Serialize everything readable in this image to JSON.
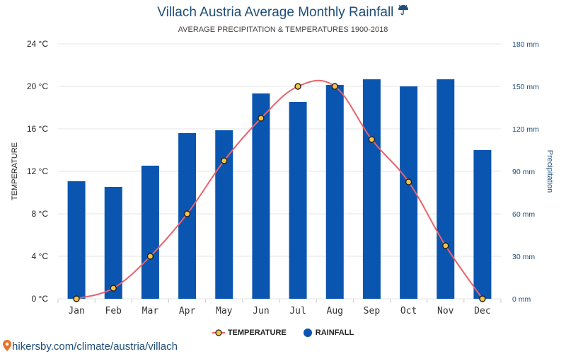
{
  "header": {
    "title": "Villach Austria Average Monthly Rainfall",
    "title_icon": "umbrella-rain-icon",
    "subtitle": "AVERAGE PRECIPITATION & TEMPERATURES 1900-2018"
  },
  "legend": {
    "temperature": "TEMPERATURE",
    "rainfall": "RAINFALL"
  },
  "source": {
    "text": "hikersby.com/climate/austria/villach",
    "icon": "map-pin-icon"
  },
  "colors": {
    "bar": "#0a55b0",
    "line": "#e8636b",
    "axis_text_left": "#222222",
    "axis_text_right": "#1f4e79",
    "grid": "#e6e6e6"
  },
  "chart_data": {
    "type": "bar",
    "categories": [
      "Jan",
      "Feb",
      "Mar",
      "Apr",
      "May",
      "Jun",
      "Jul",
      "Aug",
      "Sep",
      "Oct",
      "Nov",
      "Dec"
    ],
    "series": [
      {
        "name": "RAINFALL",
        "type": "bar",
        "axis": "right",
        "values": [
          83,
          79,
          94,
          117,
          119,
          145,
          139,
          151,
          155,
          150,
          155,
          105
        ]
      },
      {
        "name": "TEMPERATURE",
        "type": "line",
        "axis": "left",
        "values": [
          0,
          1,
          4,
          8,
          13,
          17,
          20,
          20,
          15,
          11,
          5,
          0
        ]
      }
    ],
    "ylabel_left": "TEMPERATURE",
    "ylabel_right": "Precipitation",
    "ylim_left": [
      0,
      24
    ],
    "ylim_right": [
      0,
      180
    ],
    "yticks_left": [
      "0 °C",
      "4 °C",
      "8 °C",
      "12 °C",
      "16 °C",
      "20 °C",
      "24 °C"
    ],
    "yticks_right": [
      "0 mm",
      "30 mm",
      "60 mm",
      "90 mm",
      "120 mm",
      "150 mm",
      "180 mm"
    ],
    "grid": true,
    "legend_position": "bottom"
  }
}
